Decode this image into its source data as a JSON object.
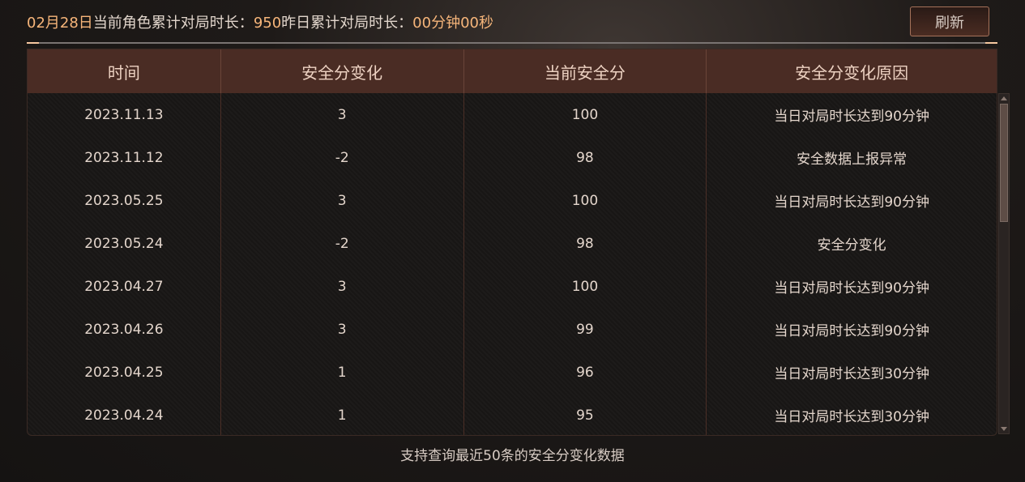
{
  "header": {
    "date": "02月28日",
    "label_current": "当前角色累计对局时长：",
    "current_value": "950",
    "label_yesterday": "昨日累计对局时长：",
    "yesterday_value": "00分钟00秒"
  },
  "refresh_label": "刷新",
  "table": {
    "columns": [
      "时间",
      "安全分变化",
      "当前安全分",
      "安全分变化原因"
    ],
    "rows": [
      [
        "2023.11.13",
        "3",
        "100",
        "当日对局时长达到90分钟"
      ],
      [
        "2023.11.12",
        "-2",
        "98",
        "安全数据上报异常"
      ],
      [
        "2023.05.25",
        "3",
        "100",
        "当日对局时长达到90分钟"
      ],
      [
        "2023.05.24",
        "-2",
        "98",
        "安全分变化"
      ],
      [
        "2023.04.27",
        "3",
        "100",
        "当日对局时长达到90分钟"
      ],
      [
        "2023.04.26",
        "3",
        "99",
        "当日对局时长达到90分钟"
      ],
      [
        "2023.04.25",
        "1",
        "96",
        "当日对局时长达到30分钟"
      ],
      [
        "2023.04.24",
        "1",
        "95",
        "当日对局时长达到30分钟"
      ]
    ]
  },
  "footer": "支持查询最近50条的安全分变化数据",
  "colors": {
    "accent": "#f6b57a",
    "header_bg": "#4a2c24"
  }
}
